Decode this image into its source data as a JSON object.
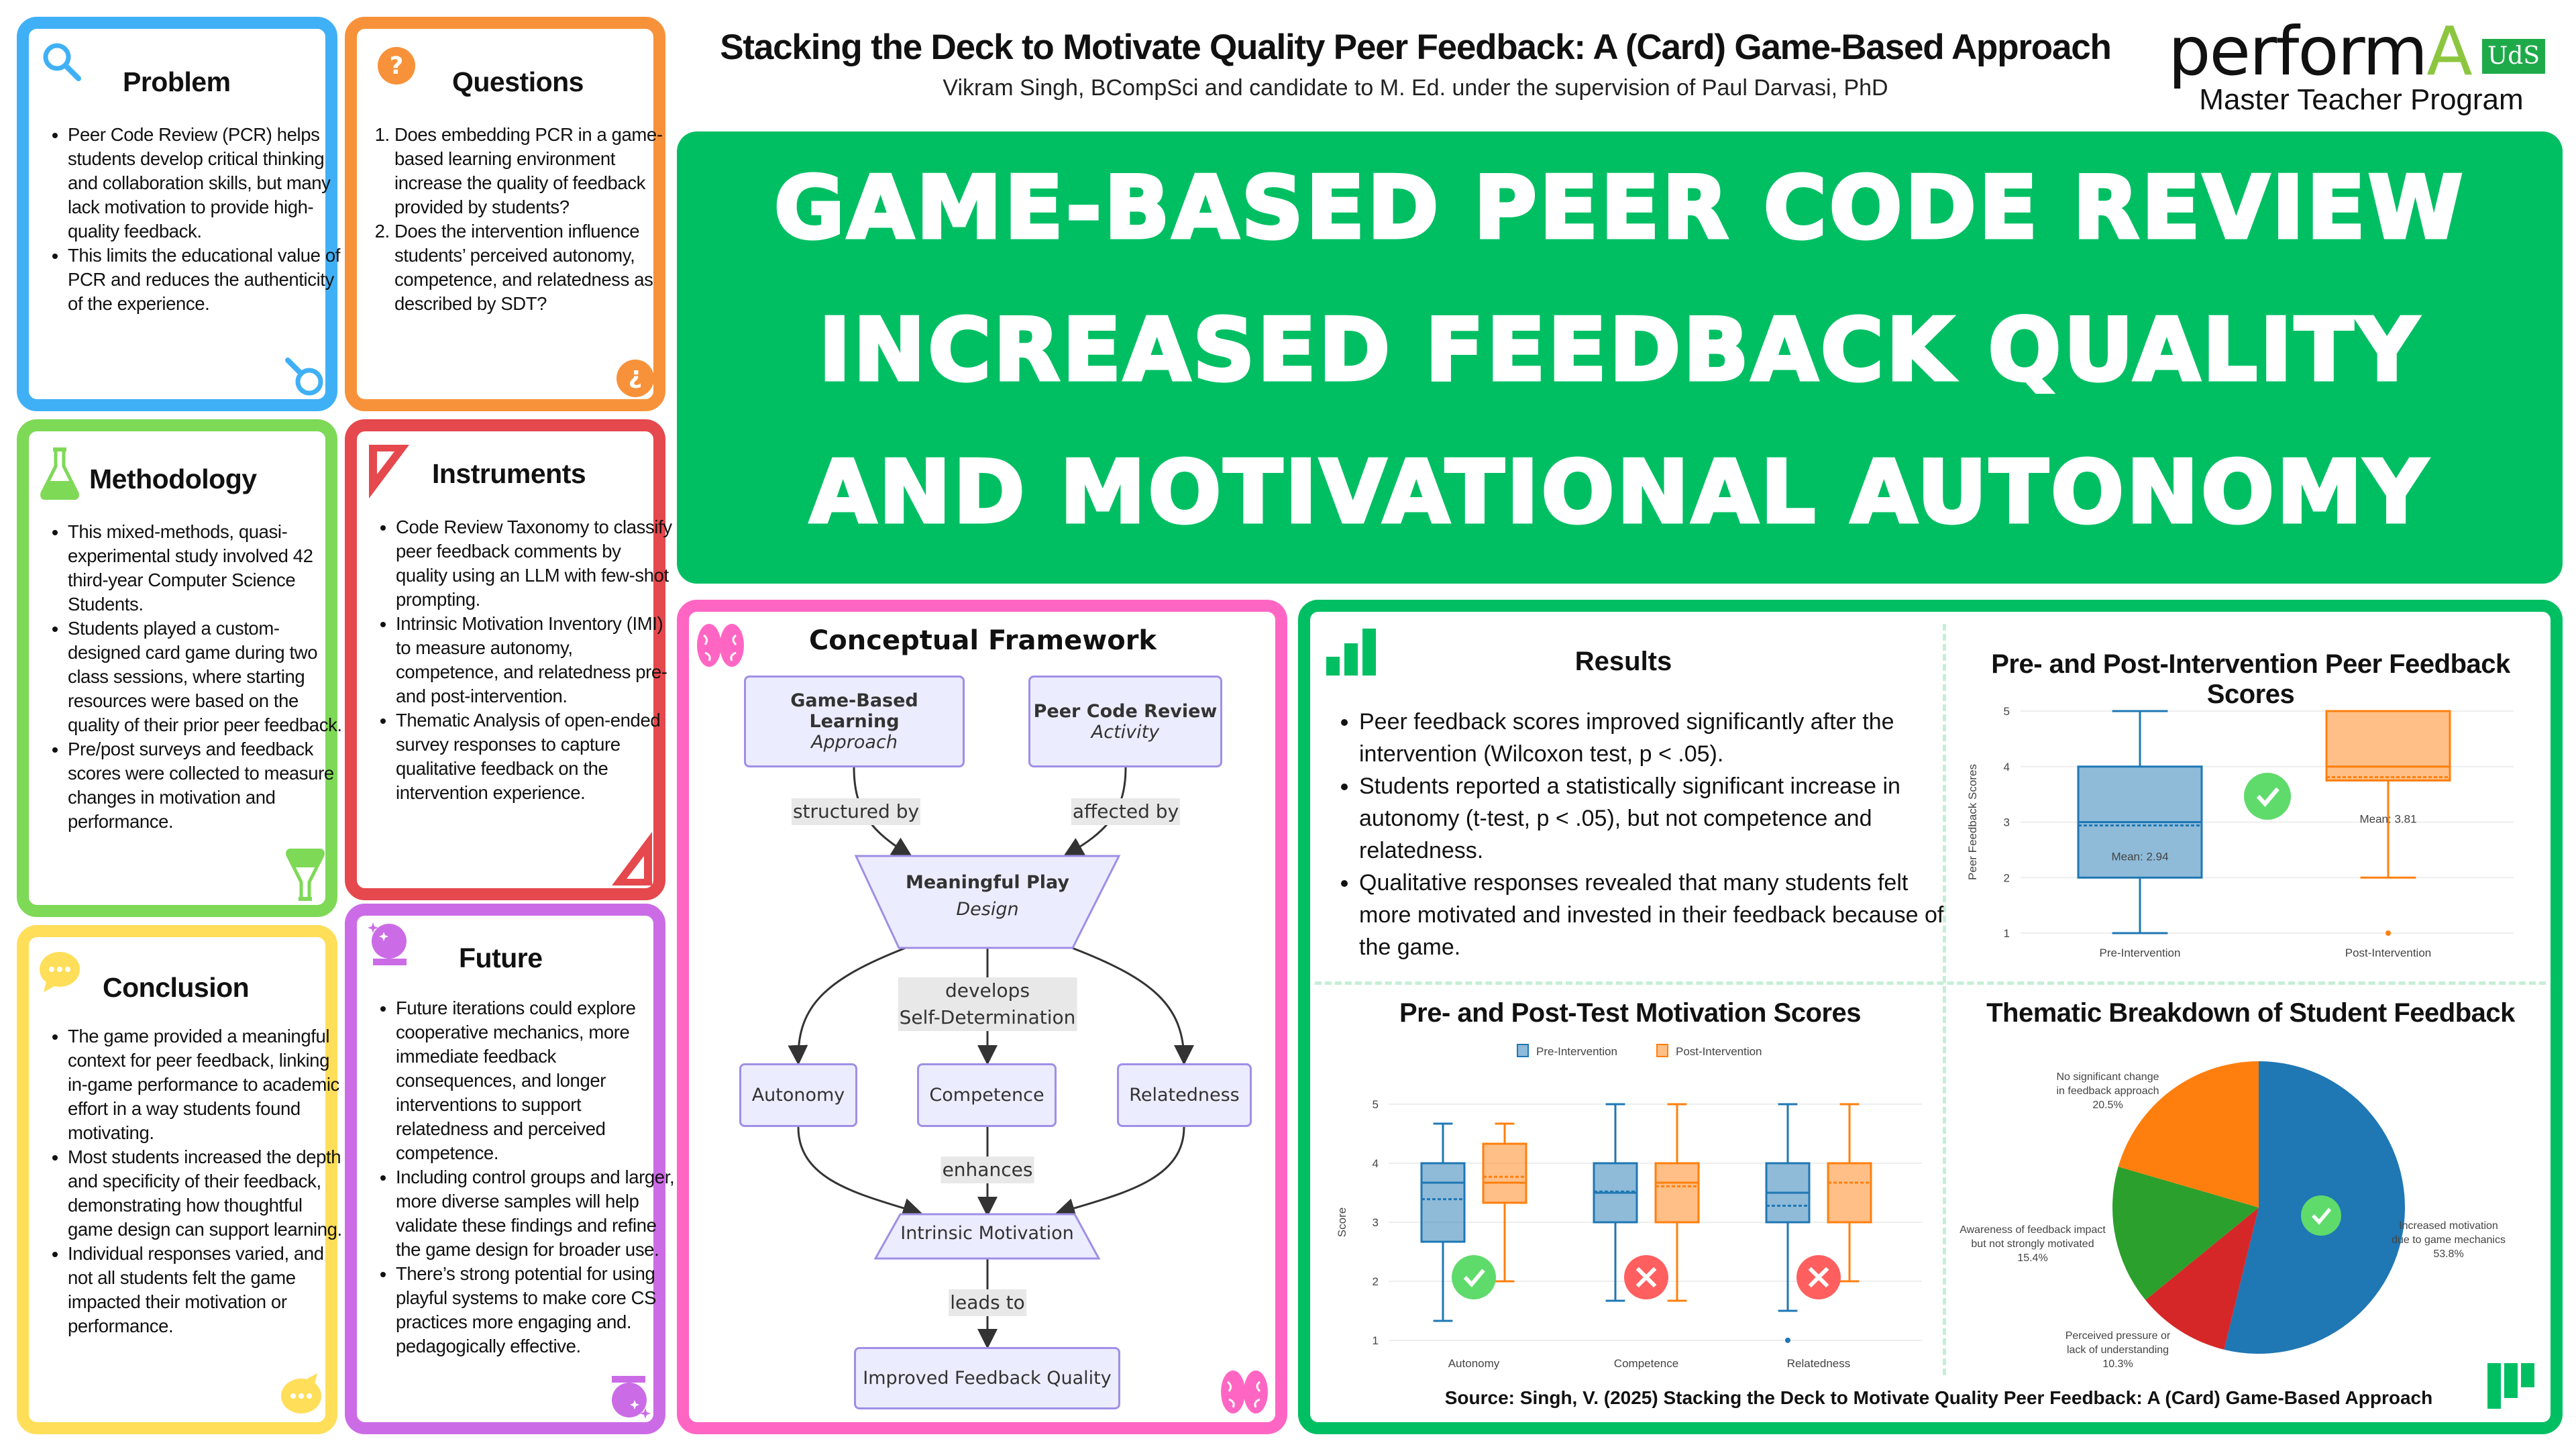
{
  "header": {
    "title": "Stacking the Deck to Motivate Quality Peer Feedback: A (Card) Game-Based Approach",
    "subtitle": "Vikram Singh, BCompSci and candidate to M. Ed. under the supervision of Paul Darvasi, PhD",
    "logo_text": "perform",
    "logo_accent": "A",
    "logo_badge": "UdS",
    "program": "Master Teacher Program"
  },
  "banner": {
    "lines": [
      "GAME-BASED PEER CODE REVIEW",
      "INCREASED FEEDBACK QUALITY",
      "AND MOTIVATIONAL AUTONOMY"
    ],
    "color": "#00bf63"
  },
  "panels": {
    "problem": {
      "title": "Problem",
      "color": "#40b0f6",
      "icon": "magnifier-icon",
      "items": [
        "Peer Code Review (PCR) helps students develop critical thinking and collaboration skills, but many lack motivation to provide high-quality feedback.",
        "This limits the educational value of PCR and reduces the authenticity of the experience."
      ]
    },
    "questions": {
      "title": "Questions",
      "color": "#f7923a",
      "icon": "question-icon",
      "items": [
        "Does embedding PCR in a game-based learning environment increase the quality of feedback provided by students?",
        "Does the intervention influence students’ perceived autonomy, competence, and relatedness as described by SDT?"
      ]
    },
    "methodology": {
      "title": "Methodology",
      "color": "#7ed957",
      "icon": "flask-icon",
      "items": [
        "This mixed-methods, quasi-experimental study involved 42 third-year Computer Science Students.",
        "Students played a custom-designed card game during two class sessions, where starting resources were based on the quality of their prior peer feedback.",
        "Pre/post surveys and feedback scores were collected to measure changes in motivation and performance."
      ]
    },
    "instruments": {
      "title": "Instruments",
      "color": "#e5484d",
      "icon": "set-square-icon",
      "items": [
        "Code Review Taxonomy to classify peer feedback comments by quality using an LLM with few-shot prompting.",
        "Intrinsic Motivation Inventory (IMI) to measure autonomy, competence, and relatedness pre- and post-intervention.",
        "Thematic Analysis of open-ended survey responses to capture qualitative feedback on the intervention experience."
      ]
    },
    "conclusion": {
      "title": "Conclusion",
      "color": "#ffde59",
      "icon": "speech-bubble-icon",
      "items": [
        "The game provided a meaningful context for peer feedback, linking in-game performance to academic effort in a way students found motivating.",
        "Most students increased the depth and specificity of their feedback, demonstrating how thoughtful game design can support learning.",
        "Individual responses varied, and not all students felt the game impacted their motivation or performance."
      ]
    },
    "future": {
      "title": "Future",
      "color": "#cb6ce6",
      "icon": "crystal-ball-icon",
      "items": [
        "Future iterations could explore cooperative mechanics, more immediate feedback consequences, and longer interventions to support relatedness and perceived competence.",
        "Including control groups and larger, more diverse samples will help validate these findings and refine the game design for broader use.",
        "There’s strong potential for using playful systems to make core CS practices more engaging and. pedagogically effective."
      ]
    }
  },
  "framework": {
    "title": "Conceptual Framework",
    "color": "#ff66c4",
    "nodes": {
      "gbl": {
        "title": "Game-Based Learning",
        "sub": "Approach"
      },
      "pcr": {
        "title": "Peer Code Review",
        "sub": "Activity"
      },
      "play": {
        "title": "Meaningful Play",
        "sub": "Design"
      },
      "autonomy": "Autonomy",
      "competence": "Competence",
      "relatedness": "Relatedness",
      "intrinsic": "Intrinsic Motivation",
      "quality": "Improved Feedback Quality"
    },
    "edges": {
      "structured": "structured by",
      "affected": "affected by",
      "develops": "develops",
      "sdt": "Self-Determination",
      "enhances": "enhances",
      "leads": "leads to"
    }
  },
  "results": {
    "title": "Results",
    "color": "#00bf63",
    "items": [
      "Peer feedback scores improved significantly after the intervention (Wilcoxon test, p < .05).",
      "Students reported a statistically significant increase in autonomy (t-test, p < .05), but not competence and relatedness.",
      "Qualitative responses revealed that many students felt more motivated and invested in their feedback because of the game."
    ],
    "source": "Source: Singh, V. (2025) Stacking the Deck to Motivate Quality Peer Feedback: A (Card) Game-Based Approach"
  },
  "chart_data": [
    {
      "type": "box",
      "title": "Pre- and Post-Intervention Peer Feedback Scores",
      "xlabel": "",
      "ylabel": "Peer Feedback Scores",
      "ylim": [
        1,
        5
      ],
      "yticks": [
        "1",
        "2",
        "3",
        "4",
        "5"
      ],
      "grid": true,
      "categories": [
        "Pre-Intervention",
        "Post-Intervention"
      ],
      "colors": [
        "#1f77b4",
        "#ff7f0e"
      ],
      "boxes": [
        {
          "min": 1,
          "q1": 2,
          "median": 3,
          "q3": 4,
          "max": 5,
          "mean": 2.94,
          "outliers": [],
          "mean_label": "Mean: 2.94"
        },
        {
          "min": 2,
          "q1": 3.75,
          "median": 4,
          "q3": 5,
          "max": 5,
          "mean": 3.81,
          "outliers": [
            1
          ],
          "mean_label": "Mean: 3.81"
        }
      ],
      "significance": "significant"
    },
    {
      "type": "box",
      "title": "Pre- and Post-Test Motivation Scores",
      "xlabel": "",
      "ylabel": "Score",
      "ylim": [
        1,
        5
      ],
      "yticks": [
        "1",
        "2",
        "3",
        "4",
        "5"
      ],
      "grid": true,
      "legend": "top",
      "categories": [
        "Autonomy",
        "Competence",
        "Relatedness"
      ],
      "series": [
        {
          "name": "Pre-Intervention",
          "color": "#1f77b4",
          "boxes": [
            {
              "min": 1.33,
              "q1": 2.67,
              "median": 3.67,
              "q3": 4,
              "max": 4.67,
              "mean": 3.39,
              "outliers": []
            },
            {
              "min": 1.67,
              "q1": 3,
              "median": 3.5,
              "q3": 4,
              "max": 5,
              "mean": 3.52,
              "outliers": []
            },
            {
              "min": 1.5,
              "q1": 3,
              "median": 3.5,
              "q3": 4,
              "max": 5,
              "mean": 3.28,
              "outliers": [
                1
              ]
            }
          ]
        },
        {
          "name": "Post-Intervention",
          "color": "#ff7f0e",
          "boxes": [
            {
              "min": 2,
              "q1": 3.33,
              "median": 3.67,
              "q3": 4.33,
              "max": 4.67,
              "mean": 3.77,
              "outliers": []
            },
            {
              "min": 1.67,
              "q1": 3,
              "median": 3.67,
              "q3": 4,
              "max": 5,
              "mean": 3.61,
              "outliers": []
            },
            {
              "min": 2,
              "q1": 3,
              "median": 4,
              "q3": 4,
              "max": 5,
              "mean": 3.67,
              "outliers": []
            }
          ]
        }
      ],
      "significance": [
        "significant",
        "not-significant",
        "not-significant"
      ]
    },
    {
      "type": "pie",
      "title": "Thematic Breakdown of Student Feedback",
      "slices": [
        {
          "label": [
            "Increased motivation",
            "due to game mechanics"
          ],
          "value": 53.8,
          "text": "53.8%",
          "color": "#1f77b4"
        },
        {
          "label": [
            "Perceived pressure or",
            "lack of understanding"
          ],
          "value": 10.3,
          "text": "10.3%",
          "color": "#d62728"
        },
        {
          "label": [
            "Awareness of feedback impact",
            "but not strongly motivated"
          ],
          "value": 15.4,
          "text": "15.4%",
          "color": "#2ca02c"
        },
        {
          "label": [
            "No significant change",
            "in feedback approach"
          ],
          "value": 20.5,
          "text": "20.5%",
          "color": "#ff7f0e"
        }
      ],
      "significance": "significant"
    }
  ]
}
